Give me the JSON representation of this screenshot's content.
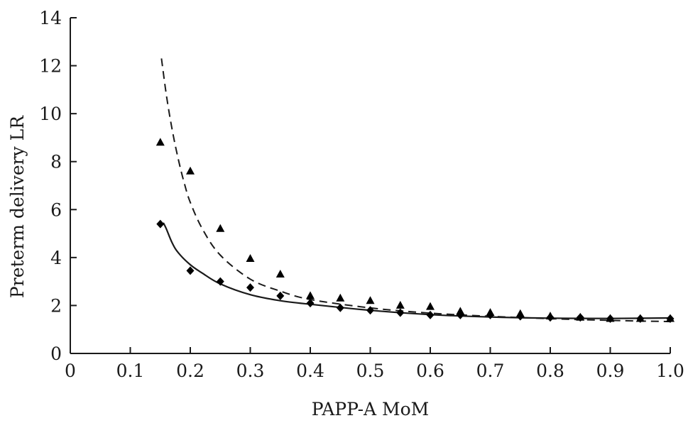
{
  "chart_data": {
    "type": "scatter",
    "title": "",
    "xlabel": "PAPP-A MoM",
    "ylabel": "Preterm delivery LR",
    "xlim": [
      0,
      1.0
    ],
    "ylim": [
      0,
      14
    ],
    "x_ticks": [
      "0",
      "0.1",
      "0.2",
      "0.3",
      "0.4",
      "0.5",
      "0.6",
      "0.7",
      "0.8",
      "0.9",
      "1.0"
    ],
    "y_ticks": [
      "0",
      "2",
      "4",
      "6",
      "8",
      "10",
      "12",
      "14"
    ],
    "grid": false,
    "legend": "none",
    "series": [
      {
        "marker": "triangle",
        "x": [
          0.15,
          0.2,
          0.25,
          0.3,
          0.35,
          0.4,
          0.45,
          0.5,
          0.55,
          0.6,
          0.65,
          0.7,
          0.75,
          0.8,
          0.85,
          0.9,
          0.95,
          1.0
        ],
        "y": [
          8.8,
          7.6,
          5.2,
          3.95,
          3.3,
          2.4,
          2.3,
          2.2,
          2.0,
          1.95,
          1.75,
          1.7,
          1.65,
          1.55,
          1.5,
          1.45,
          1.45,
          1.45
        ]
      },
      {
        "marker": "diamond",
        "x": [
          0.15,
          0.2,
          0.25,
          0.3,
          0.35,
          0.4,
          0.45,
          0.5,
          0.55,
          0.6,
          0.65,
          0.7,
          0.75,
          0.8,
          0.85,
          0.9,
          0.95,
          1.0
        ],
        "y": [
          5.4,
          3.45,
          3.0,
          2.75,
          2.4,
          2.1,
          1.9,
          1.8,
          1.7,
          1.6,
          1.6,
          1.6,
          1.55,
          1.5,
          1.5,
          1.45,
          1.45,
          1.45
        ]
      }
    ],
    "fit_curves": [
      {
        "style": "dashed",
        "x": [
          0.152,
          0.16,
          0.17,
          0.18,
          0.19,
          0.2,
          0.22,
          0.25,
          0.3,
          0.35,
          0.4,
          0.5,
          0.6,
          0.7,
          0.8,
          0.9,
          1.0
        ],
        "y": [
          12.3,
          10.8,
          9.3,
          8.1,
          7.1,
          6.3,
          5.2,
          4.1,
          3.1,
          2.6,
          2.25,
          1.9,
          1.68,
          1.55,
          1.45,
          1.38,
          1.33
        ]
      },
      {
        "style": "solid",
        "x": [
          0.155,
          0.16,
          0.17,
          0.18,
          0.2,
          0.22,
          0.25,
          0.3,
          0.35,
          0.4,
          0.5,
          0.6,
          0.7,
          0.8,
          0.9,
          1.0
        ],
        "y": [
          5.45,
          5.2,
          4.6,
          4.2,
          3.7,
          3.35,
          2.9,
          2.45,
          2.2,
          2.05,
          1.8,
          1.62,
          1.52,
          1.47,
          1.46,
          1.48
        ]
      }
    ]
  }
}
